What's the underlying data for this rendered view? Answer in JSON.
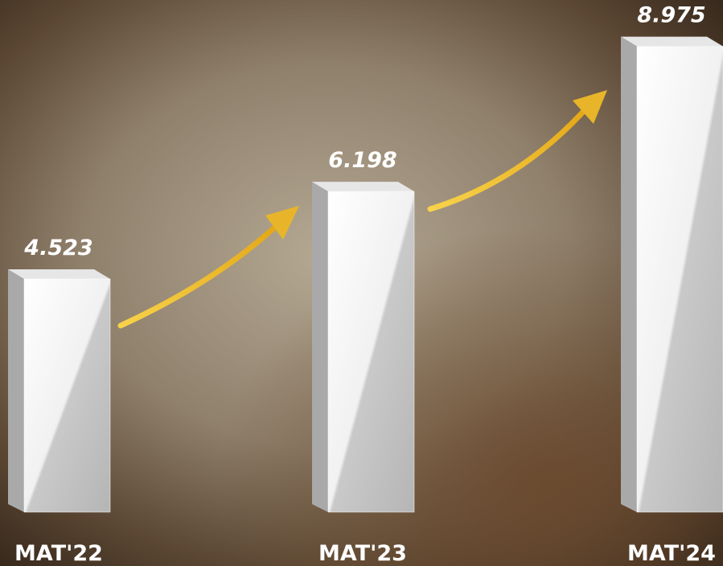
{
  "chart_data": {
    "type": "bar",
    "categories": [
      "MAT'22",
      "MAT'23",
      "MAT'24"
    ],
    "values": [
      4.523,
      6.198,
      8.975
    ],
    "color": "#ffffff"
  }
}
